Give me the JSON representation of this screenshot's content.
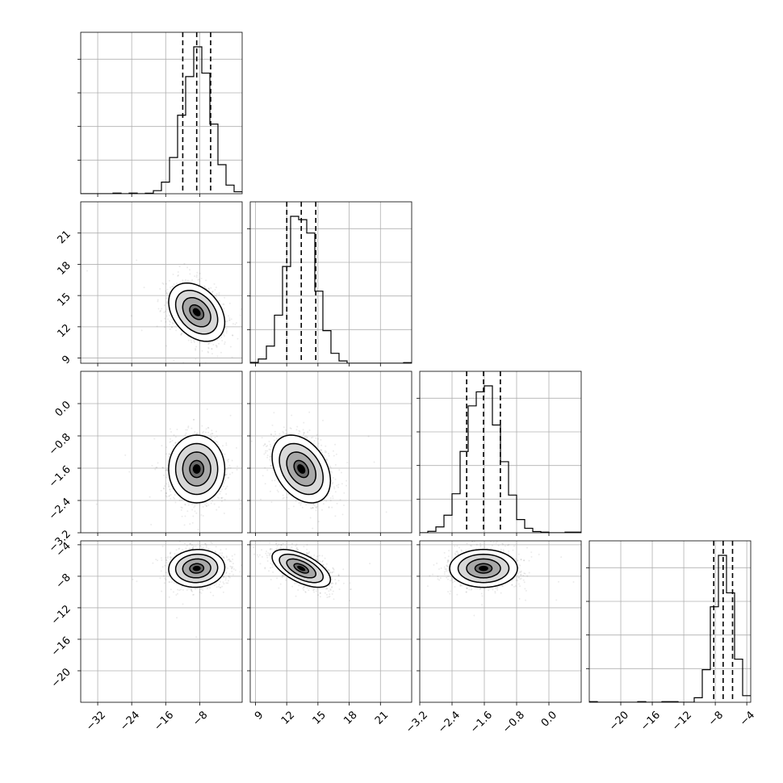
{
  "chart_data": {
    "type": "corner",
    "params": [
      {
        "id": "p1",
        "lim": [
          -36,
          2
        ],
        "ticks": [
          -32,
          -24,
          -16,
          -8
        ],
        "tick_labels": [
          "−32",
          "−24",
          "−16",
          "−8"
        ],
        "mean": -8.7,
        "sd": 3.3
      },
      {
        "id": "p2",
        "lim": [
          8.5,
          24
        ],
        "ticks": [
          9,
          12,
          15,
          18,
          21
        ],
        "tick_labels": [
          "9",
          "12",
          "15",
          "18",
          "21"
        ],
        "mean": 13.4,
        "sd": 1.4
      },
      {
        "id": "p3",
        "lim": [
          -3.2,
          0.8
        ],
        "ticks": [
          -3.2,
          -2.4,
          -1.6,
          -0.8,
          0.0
        ],
        "tick_labels": [
          "−3.2",
          "−2.4",
          "−1.6",
          "−0.8",
          "0.0"
        ],
        "mean": -1.62,
        "sd": 0.42
      },
      {
        "id": "p4",
        "lim": [
          -24,
          -3.5
        ],
        "ticks": [
          -20,
          -16,
          -12,
          -8,
          -4
        ],
        "tick_labels": [
          "−20",
          "−16",
          "−12",
          "−8",
          "−4"
        ],
        "mean": -7.0,
        "sd": 1.2
      }
    ],
    "quantiles": [
      0.16,
      0.5,
      0.84
    ],
    "correlations": {
      "1-0": -0.35,
      "2-0": 0.0,
      "2-1": -0.35,
      "3-0": 0.05,
      "3-1": -0.6,
      "3-2": 0.0
    },
    "contour_levels_sigma": [
      0.5,
      1.0,
      1.5,
      2.0
    ],
    "grid": true,
    "colors": {
      "line": "#000000",
      "grid": "#b0b0b0",
      "density": "#000000"
    }
  }
}
